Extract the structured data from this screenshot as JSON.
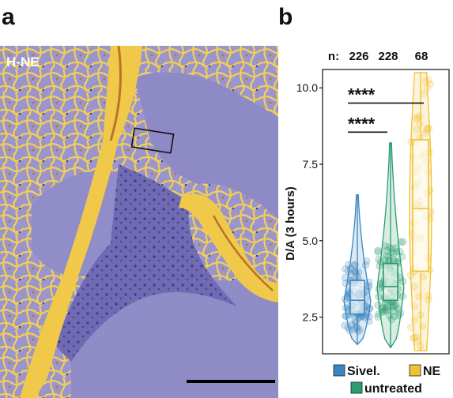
{
  "panels": {
    "a": {
      "letter": "a",
      "image_label": "H-NE"
    },
    "b": {
      "letter": "b"
    }
  },
  "colors": {
    "tissue_bg": "#8d89c4",
    "tissue_dark": "#3d3a86",
    "tissue_yellow": "#f1c94a",
    "tissue_orange": "#b8742a",
    "sivel": "#3a86c0",
    "untreated": "#2a9d6f",
    "ne": "#f0c132"
  },
  "chart_data": {
    "type": "violin-box",
    "ylabel": "D/A (3 hours)",
    "yticks": [
      2.5,
      5.0,
      7.5,
      10.0
    ],
    "tick_labels": [
      "2.5",
      "5.0",
      "7.5",
      "10.0"
    ],
    "ylim": [
      1.3,
      10.6
    ],
    "n_prefix": "n:",
    "groups": [
      {
        "name": "Sivel.",
        "n": "226",
        "color": "#3a86c0",
        "min": 1.6,
        "q1": 2.6,
        "median": 3.05,
        "q3": 3.7,
        "max": 6.5
      },
      {
        "name": "untreated",
        "n": "228",
        "color": "#2a9d6f",
        "min": 1.5,
        "q1": 3.05,
        "median": 3.5,
        "q3": 4.25,
        "max": 8.2
      },
      {
        "name": "NE",
        "n": "68",
        "color": "#f0c132",
        "min": 1.4,
        "q1": 4.0,
        "median": 6.05,
        "q3": 8.3,
        "max": 10.5
      }
    ],
    "significance": [
      {
        "label": "****",
        "from": "Sivel.",
        "to": "NE",
        "y": 9.5
      },
      {
        "label": "****",
        "from": "Sivel.",
        "to": "untreated",
        "y": 8.55
      }
    ],
    "legend": [
      "Sivel.",
      "NE",
      "untreated"
    ],
    "legend_position": "bottom"
  }
}
